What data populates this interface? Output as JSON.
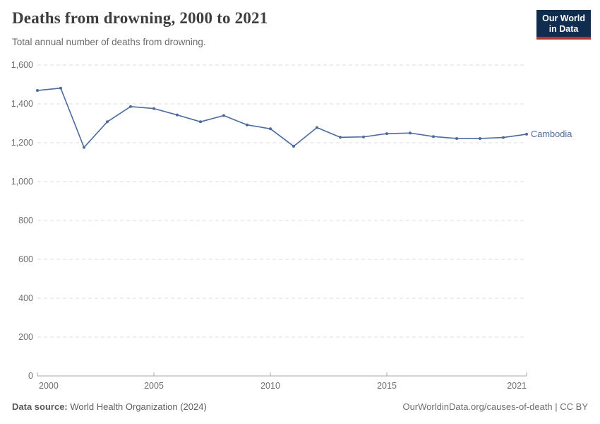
{
  "header": {
    "title": "Deaths from drowning, 2000 to 2021",
    "subtitle": "Total annual number of deaths from drowning.",
    "logo": {
      "line1": "Our World",
      "line2": "in Data",
      "bg": "#102D50",
      "accent": "#BE322D"
    }
  },
  "chart_data": {
    "type": "line",
    "title": "Deaths from drowning, 2000 to 2021",
    "x": [
      2000,
      2001,
      2002,
      2003,
      2004,
      2005,
      2006,
      2007,
      2008,
      2009,
      2010,
      2011,
      2012,
      2013,
      2014,
      2015,
      2016,
      2017,
      2018,
      2019,
      2020,
      2021
    ],
    "series": [
      {
        "name": "Cambodia",
        "color": "#4C6A9C",
        "values": [
          1469,
          1481,
          1176,
          1308,
          1386,
          1376,
          1343,
          1308,
          1340,
          1292,
          1272,
          1182,
          1278,
          1228,
          1230,
          1247,
          1250,
          1232,
          1222,
          1222,
          1227,
          1244
        ]
      }
    ],
    "x_ticks": [
      2000,
      2005,
      2010,
      2015,
      2021
    ],
    "y_ticks": [
      0,
      200,
      400,
      600,
      800,
      1000,
      1200,
      1400,
      1600
    ],
    "xlim": [
      2000,
      2021
    ],
    "ylim": [
      0,
      1600
    ],
    "grid": "horizontal-dashed",
    "legend_position": "end-of-line"
  },
  "footer": {
    "source_label": "Data source:",
    "source_value": "World Health Organization (2024)",
    "attribution": "OurWorldinData.org/causes-of-death | CC BY"
  }
}
